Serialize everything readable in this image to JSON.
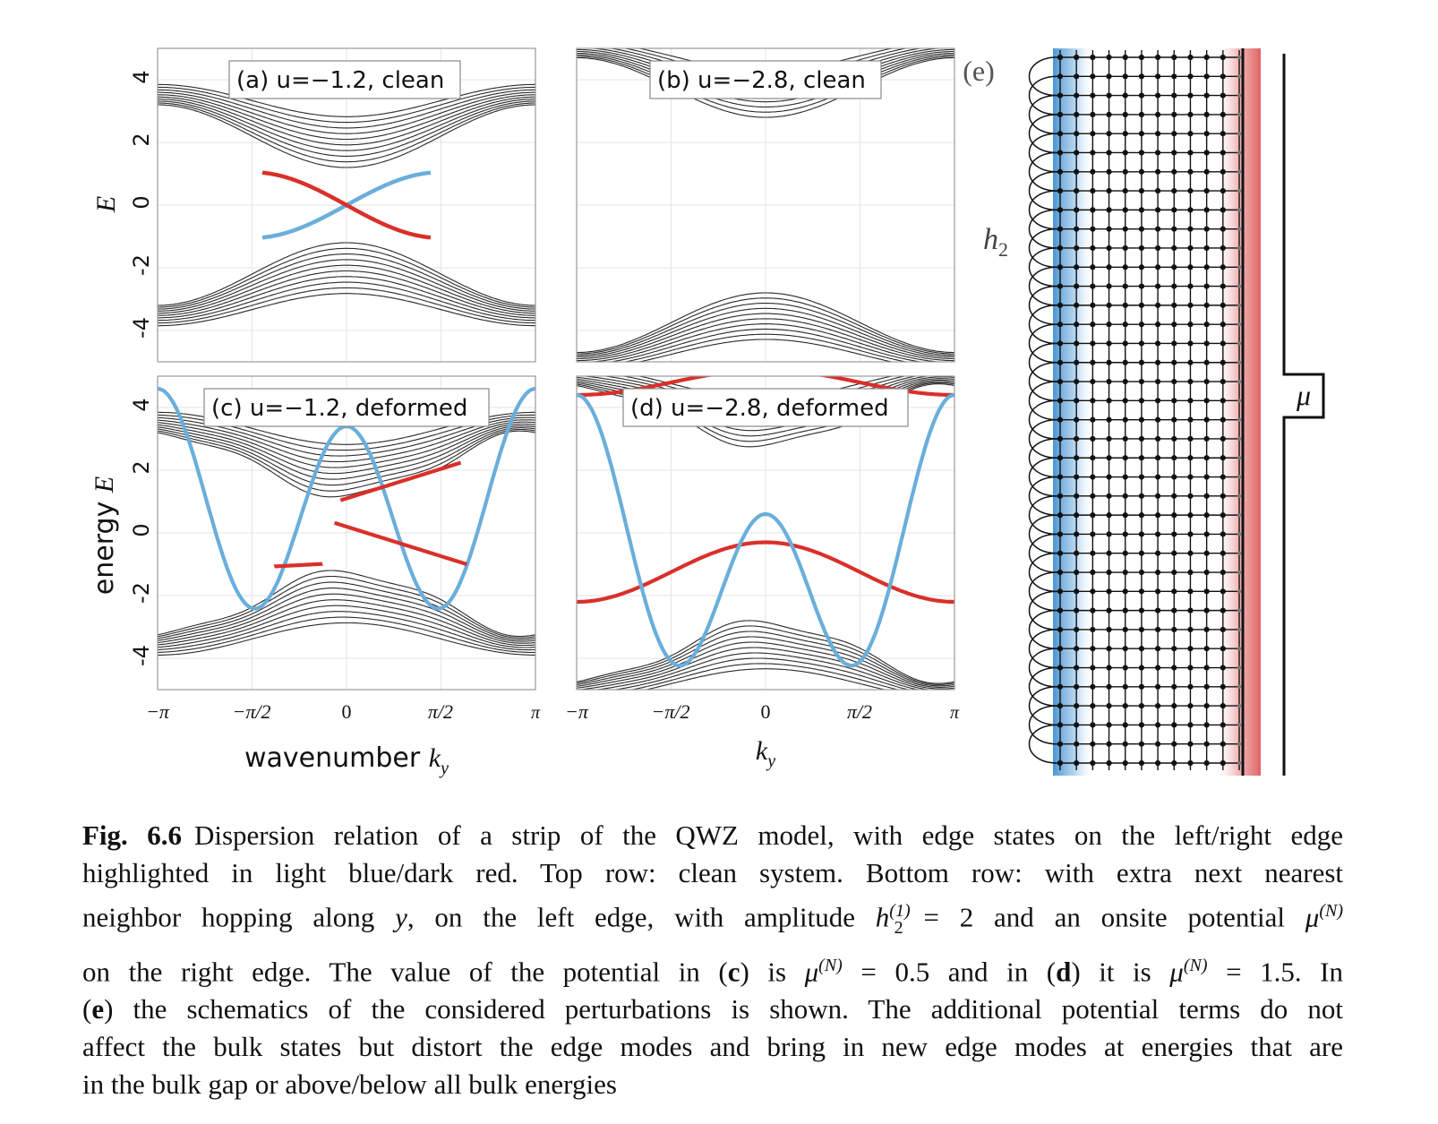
{
  "chart_data": [
    {
      "type": "line",
      "panel": "a",
      "title": "(a) u=−1.2, clean",
      "ylabel": "E",
      "xlim": [
        "-π",
        "π"
      ],
      "ylim": [
        -5,
        5
      ],
      "y_ticks": [
        "4",
        "2",
        "0",
        "-2",
        "-4"
      ],
      "grid": true,
      "series": [
        {
          "role": "bulk bands",
          "color": "#2a2a2a",
          "gap_half_width": 1.2,
          "band_top": 3.2,
          "band_bottom": -3.2
        },
        {
          "role": "left edge state",
          "color": "#6aaedb",
          "values": [
            [
              -1.0,
              -1.0
            ],
            [
              0,
              0
            ],
            [
              1.0,
              1.0
            ]
          ]
        },
        {
          "role": "right edge state",
          "color": "#d9302a",
          "values": [
            [
              -1.0,
              1.0
            ],
            [
              0,
              0
            ],
            [
              1.0,
              -1.0
            ]
          ]
        }
      ]
    },
    {
      "type": "line",
      "panel": "b",
      "title": "(b) u=−2.8, clean",
      "xlim": [
        "-π",
        "π"
      ],
      "ylim": [
        -5,
        5
      ],
      "grid": true,
      "series": [
        {
          "role": "bulk bands",
          "color": "#2a2a2a",
          "gap_half_width": 2.8,
          "band_top": 4.8,
          "band_bottom": -4.8
        }
      ]
    },
    {
      "type": "line",
      "panel": "c",
      "title": "(c) u=−1.2, deformed",
      "ylabel": "energy E",
      "xlabel": "wavenumber k_y",
      "xlim": [
        "-π",
        "π"
      ],
      "ylim": [
        -5,
        5
      ],
      "y_ticks": [
        "4",
        "2",
        "0",
        "-2",
        "-4"
      ],
      "x_ticks": [
        "−π",
        "−π/2",
        "0",
        "π/2",
        "π"
      ],
      "grid": true,
      "series": [
        {
          "role": "bulk bands",
          "color": "#2a2a2a"
        },
        {
          "role": "left edge (h2) states",
          "color": "#6aaedb"
        },
        {
          "role": "right edge (μ) states",
          "color": "#d9302a"
        }
      ]
    },
    {
      "type": "line",
      "panel": "d",
      "title": "(d) u=−2.8, deformed",
      "xlabel": "k_y",
      "xlim": [
        "-π",
        "π"
      ],
      "ylim": [
        -5,
        5
      ],
      "x_ticks": [
        "−π",
        "−π/2",
        "0",
        "π/2",
        "π"
      ],
      "grid": true,
      "series": [
        {
          "role": "bulk bands",
          "color": "#2a2a2a"
        },
        {
          "role": "left edge (h2) states",
          "color": "#6aaedb"
        },
        {
          "role": "right edge (μ) state",
          "color": "#d9302a",
          "values": [
            [
              -3.1416,
              -2.2
            ],
            [
              0,
              -0.3
            ],
            [
              3.1416,
              -2.2
            ]
          ]
        }
      ]
    }
  ],
  "panel_e": {
    "label": "(e)",
    "h2_label": "h",
    "h2_sub": "2",
    "mu_label": "μ",
    "lattice_cols": 12,
    "lattice_rows": 38,
    "left_color": "#3f8fd0",
    "right_color": "#dd5a5a"
  },
  "caption": {
    "lines": [
      {
        "segs": [
          {
            "t": "Fig. 6.6",
            "style": "b"
          },
          {
            "t": "Dispersion relation of a strip of the QWZ model, with edge states on the left/right edge"
          }
        ]
      },
      {
        "segs": [
          {
            "t": "highlighted in light blue/dark red. Top row: clean system. Bottom row: with extra next nearest"
          }
        ]
      },
      {
        "segs": [
          {
            "t": "neighbor hopping along "
          },
          {
            "t": "y",
            "style": "i"
          },
          {
            "t": ", on the left edge, with amplitude "
          },
          {
            "t": "h",
            "style": "i"
          },
          {
            "t": "(1)",
            "style": "sup"
          },
          {
            "t": "2",
            "style": "sub"
          },
          {
            "t": " = 2 and an onsite potential "
          },
          {
            "t": "μ",
            "style": "i"
          },
          {
            "t": "(N)",
            "style": "sup"
          }
        ]
      },
      {
        "segs": [
          {
            "t": "on the right edge. The value of the potential in ("
          },
          {
            "t": "c",
            "style": "b"
          },
          {
            "t": ") is "
          },
          {
            "t": "μ",
            "style": "i"
          },
          {
            "t": "(N)",
            "style": "sup"
          },
          {
            "t": " = 0.5 and in ("
          },
          {
            "t": "d",
            "style": "b"
          },
          {
            "t": ") it is "
          },
          {
            "t": "μ",
            "style": "i"
          },
          {
            "t": "(N)",
            "style": "sup"
          },
          {
            "t": " = 1.5. In"
          }
        ]
      },
      {
        "segs": [
          {
            "t": "("
          },
          {
            "t": "e",
            "style": "b"
          },
          {
            "t": ") the schematics of the considered perturbations is shown. The additional potential terms do not"
          }
        ]
      },
      {
        "segs": [
          {
            "t": "affect the bulk states but distort the edge modes and bring in new edge modes at energies that are"
          }
        ]
      },
      {
        "segs": [
          {
            "t": "in the bulk gap or above/below all bulk energies"
          }
        ]
      }
    ]
  }
}
